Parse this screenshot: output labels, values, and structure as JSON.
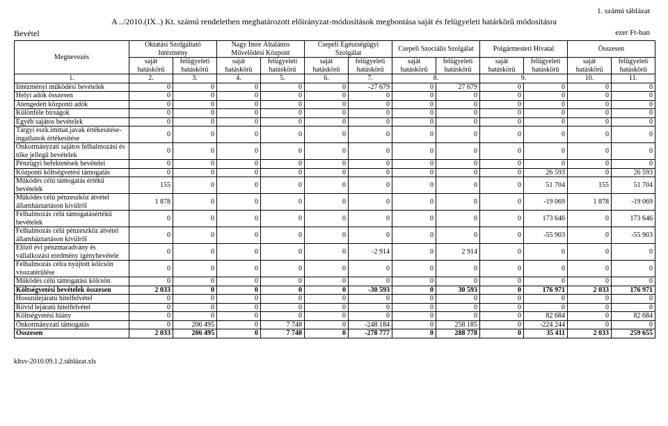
{
  "top_label": "1. számú táblázat",
  "title": "A ../2010.(IX..) Kt. számú rendeletben meghatározott előirányzat-módosítások megbontása saját és felügyeleti határkörű módosításra",
  "left_heading": "Bevétel",
  "unit_label": "ezer Ft-ban",
  "row_label_heading": "Megnevezés",
  "groups": [
    "Oktatási Szolgáltató Intézmény",
    "Nagy Imre Általános Művelődési Központ",
    "Csepeli Egészségügyi Szolgálat",
    "Csepeli Szociális Szolgálat",
    "Polgármesteri Hivatal",
    "Összesen"
  ],
  "subcols": [
    "saját hatáskörű",
    "felügyeleti hatáskörű"
  ],
  "index_row": [
    "1.",
    "2.",
    "3.",
    "4.",
    "5.",
    "6.",
    "7.",
    "8.",
    "9.",
    "10.",
    "11."
  ],
  "rows": [
    {
      "label": "Intézményi működési bevételek",
      "v": [
        "0",
        "0",
        "0",
        "0",
        "0",
        "-27 679",
        "0",
        "27 679",
        "0",
        "0",
        "0",
        "0"
      ]
    },
    {
      "label": "Helyi adók összesen",
      "v": [
        "0",
        "0",
        "0",
        "0",
        "0",
        "0",
        "0",
        "0",
        "0",
        "0",
        "0",
        "0"
      ]
    },
    {
      "label": "Átengedett központi adók",
      "v": [
        "0",
        "0",
        "0",
        "0",
        "0",
        "0",
        "0",
        "0",
        "0",
        "0",
        "0",
        "0"
      ]
    },
    {
      "label": "Különféle bírságok",
      "v": [
        "0",
        "0",
        "0",
        "0",
        "0",
        "0",
        "0",
        "0",
        "0",
        "0",
        "0",
        "0"
      ]
    },
    {
      "label": "Egyéb sajátos bevételek",
      "v": [
        "0",
        "0",
        "0",
        "0",
        "0",
        "0",
        "0",
        "0",
        "0",
        "0",
        "0",
        "0"
      ]
    },
    {
      "label": "Tárgyi eszk.immat.javak értékesítése-ingatlanok értékesítése",
      "v": [
        "0",
        "0",
        "0",
        "0",
        "0",
        "0",
        "0",
        "0",
        "0",
        "0",
        "0",
        "0"
      ]
    },
    {
      "label": "Önkormányzati sajátos felhalmozási és tőke jellegű bevételek",
      "v": [
        "0",
        "0",
        "0",
        "0",
        "0",
        "0",
        "0",
        "0",
        "0",
        "0",
        "0",
        "0"
      ]
    },
    {
      "label": "Pénzügyi befektetések bevételei",
      "v": [
        "0",
        "0",
        "0",
        "0",
        "0",
        "0",
        "0",
        "0",
        "0",
        "0",
        "0",
        "0"
      ]
    },
    {
      "label": "Központi költségvetési támogatás",
      "v": [
        "0",
        "0",
        "0",
        "0",
        "0",
        "0",
        "0",
        "0",
        "0",
        "26 593",
        "0",
        "26 593"
      ]
    },
    {
      "label": "Működés célú támogatás értékű bevételek",
      "v": [
        "155",
        "0",
        "0",
        "0",
        "0",
        "0",
        "0",
        "0",
        "0",
        "51 704",
        "155",
        "51 704"
      ]
    },
    {
      "label": "Működés célú pénzeszköz átvétel államháztartáson kívülről",
      "v": [
        "1 878",
        "0",
        "0",
        "0",
        "0",
        "0",
        "0",
        "0",
        "0",
        "-19 069",
        "1 878",
        "-19 069"
      ]
    },
    {
      "label": "Felhalmozás célú támogatásértékű bevételek",
      "v": [
        "0",
        "0",
        "0",
        "0",
        "0",
        "0",
        "0",
        "0",
        "0",
        "173 646",
        "0",
        "173 646"
      ]
    },
    {
      "label": "Felhalmozás célú pénzeszköz átvétel államháztartáson kívülről",
      "v": [
        "0",
        "0",
        "0",
        "0",
        "0",
        "0",
        "0",
        "0",
        "0",
        "-55 903",
        "0",
        "-55 903"
      ]
    },
    {
      "label": "Előző évi pénzmaradvány és vállalkozási eredmény igénybevétele",
      "v": [
        "0",
        "0",
        "0",
        "0",
        "0",
        "-2 914",
        "0",
        "2 914",
        "0",
        "0",
        "0",
        "0"
      ]
    },
    {
      "label": "Felhalmozás célra nyújtott kölcsön visszatérülése",
      "v": [
        "0",
        "0",
        "0",
        "0",
        "0",
        "0",
        "0",
        "0",
        "0",
        "0",
        "0",
        "0"
      ]
    },
    {
      "label": "Működés célú támogatási kölcsön",
      "v": [
        "0",
        "0",
        "0",
        "0",
        "0",
        "0",
        "0",
        "0",
        "0",
        "0",
        "0",
        "0"
      ]
    },
    {
      "label": "Költségvetési bevételek összesen",
      "bold": true,
      "v": [
        "2 033",
        "0",
        "0",
        "0",
        "0",
        "-30 593",
        "0",
        "30 593",
        "0",
        "176 971",
        "2 033",
        "176 971"
      ]
    },
    {
      "label": "Hosszúlejáratú hitelfelvétel",
      "v": [
        "0",
        "0",
        "0",
        "0",
        "0",
        "0",
        "0",
        "0",
        "0",
        "0",
        "0",
        "0"
      ]
    },
    {
      "label": "Rövid lejáratú hitelfelvétel",
      "v": [
        "0",
        "0",
        "0",
        "0",
        "0",
        "0",
        "0",
        "0",
        "0",
        "0",
        "0",
        "0"
      ]
    },
    {
      "label": "Költségvetési hiány",
      "v": [
        "0",
        "0",
        "0",
        "0",
        "0",
        "0",
        "0",
        "0",
        "0",
        "82 684",
        "0",
        "82 684"
      ]
    },
    {
      "label": "Önkormányzati támogatás",
      "v": [
        "0",
        "206 495",
        "0",
        "7 748",
        "0",
        "-248 184",
        "0",
        "258 185",
        "0",
        "-224 244",
        "0",
        "0"
      ]
    },
    {
      "label": "Összesen",
      "bold": true,
      "v": [
        "2 033",
        "206 495",
        "0",
        "7 748",
        "0",
        "-278 777",
        "0",
        "288 778",
        "0",
        "35 411",
        "2 033",
        "259 655"
      ]
    }
  ],
  "footer": "kltsv-2010.09.1.2.táblázat.xls"
}
